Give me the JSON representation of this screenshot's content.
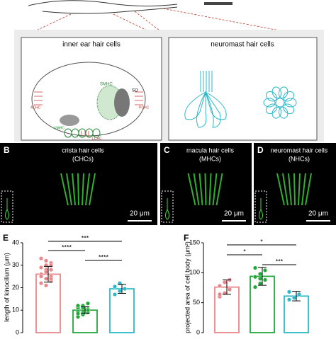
{
  "panel_a": {
    "left_title": "inner ear hair cells",
    "right_title": "neuromast hair cells",
    "labels": {
      "smhc": "SMHC",
      "so": "SO",
      "achc": "ACHC",
      "pchc": "PCHC",
      "umhc": "UMHC",
      "lchc": "LCHC"
    }
  },
  "panels": [
    {
      "letter": "B",
      "title": "crista hair cells",
      "subtitle": "(CHCs)",
      "scale": "20 μm"
    },
    {
      "letter": "C",
      "title": "macula hair cells",
      "subtitle": "(MHCs)",
      "scale": "20 μm"
    },
    {
      "letter": "D",
      "title": "neuromast hair cells",
      "subtitle": "(NHCs)",
      "scale": "20 μm"
    }
  ],
  "chart_data": [
    {
      "type": "bar",
      "panel": "E",
      "y_label": "length of kinocilium (μm)",
      "categories": [
        null,
        null,
        null
      ],
      "colors": [
        "#e8878a",
        "#22a83a",
        "#2bb8c9"
      ],
      "values": [
        26,
        10,
        19.5
      ],
      "errors": [
        3.5,
        1.5,
        2
      ],
      "points": [
        [
          22,
          24,
          25,
          26,
          27,
          28,
          29,
          30,
          31,
          33,
          21,
          23,
          26,
          28,
          30,
          25,
          27,
          24,
          29,
          32
        ],
        [
          7,
          8,
          9,
          9.5,
          10,
          10.5,
          11,
          12,
          13,
          8.5,
          9,
          10,
          11,
          10,
          9,
          12,
          11,
          10
        ],
        [
          17,
          18.5,
          19.5,
          20.5,
          22
        ]
      ],
      "significance": [
        "***",
        "****",
        "****"
      ],
      "ylim": [
        0,
        40
      ],
      "yticks": [
        0,
        10,
        20,
        30,
        40
      ]
    },
    {
      "type": "bar",
      "panel": "F",
      "y_label": "projected area of cell body (μm²)",
      "categories": [
        null,
        null,
        null
      ],
      "colors": [
        "#e8878a",
        "#22a83a",
        "#2bb8c9"
      ],
      "values": [
        76,
        94,
        61
      ],
      "errors": [
        12,
        15,
        8
      ],
      "points": [
        [
          60,
          66,
          72,
          78,
          84,
          88,
          64
        ],
        [
          76,
          82,
          88,
          93,
          98,
          104,
          108,
          90
        ],
        [
          55,
          58,
          64,
          68
        ]
      ],
      "significance": [
        "*",
        "*",
        "***"
      ],
      "ylim": [
        0,
        150
      ],
      "yticks": [
        0,
        50,
        100,
        150
      ]
    }
  ]
}
